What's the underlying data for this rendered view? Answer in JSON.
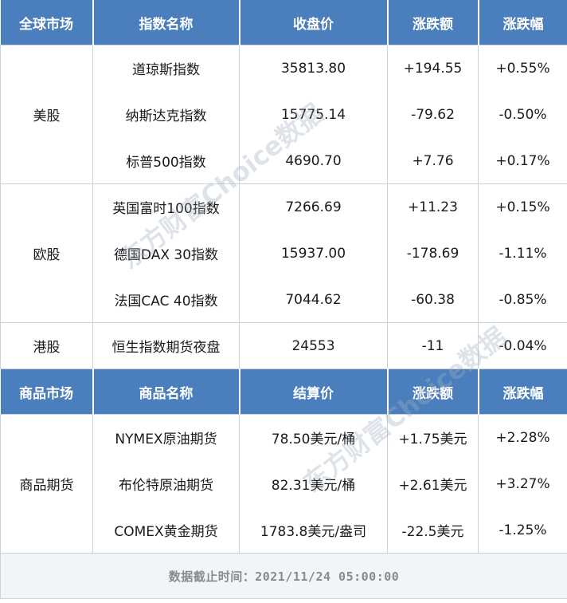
{
  "header1": [
    "全球市场",
    "指数名称",
    "收盘价",
    "涨跌额",
    "涨跌幅"
  ],
  "groups1": [
    {
      "market": "美股",
      "rows": [
        [
          "道琼斯指数",
          "35813.80",
          "+194.55",
          "+0.55%"
        ],
        [
          "纳斯达克指数",
          "15775.14",
          "-79.62",
          "-0.50%"
        ],
        [
          "标普500指数",
          "4690.70",
          "+7.76",
          "+0.17%"
        ]
      ]
    },
    {
      "market": "欧股",
      "rows": [
        [
          "英国富时100指数",
          "7266.69",
          "+11.23",
          "+0.15%"
        ],
        [
          "德国DAX 30指数",
          "15937.00",
          "-178.69",
          "-1.11%"
        ],
        [
          "法国CAC 40指数",
          "7044.62",
          "-60.38",
          "-0.85%"
        ]
      ]
    },
    {
      "market": "港股",
      "rows": [
        [
          "恒生指数期货夜盘",
          "24553",
          "-11",
          "-0.04%"
        ]
      ]
    }
  ],
  "header2": [
    "商品市场",
    "商品名称",
    "结算价",
    "涨跌额",
    "涨跌幅"
  ],
  "groups2": [
    {
      "market": "商品期货",
      "rows": [
        [
          "NYMEX原油期货",
          "78.50美元/桶",
          "+1.75美元",
          "+2.28%"
        ],
        [
          "布伦特原油期货",
          "82.31美元/桶",
          "+2.61美元",
          "+3.27%"
        ],
        [
          "COMEX黄金期货",
          "1783.8美元/盎司",
          "-22.5美元",
          "-1.25%"
        ]
      ]
    }
  ],
  "footer": "数据截止时间：2021/11/24 05:00:00",
  "watermark": "东方财富Choice数据",
  "colors": {
    "header_bg": "#4a7ebc",
    "border": "#c9d3df"
  }
}
